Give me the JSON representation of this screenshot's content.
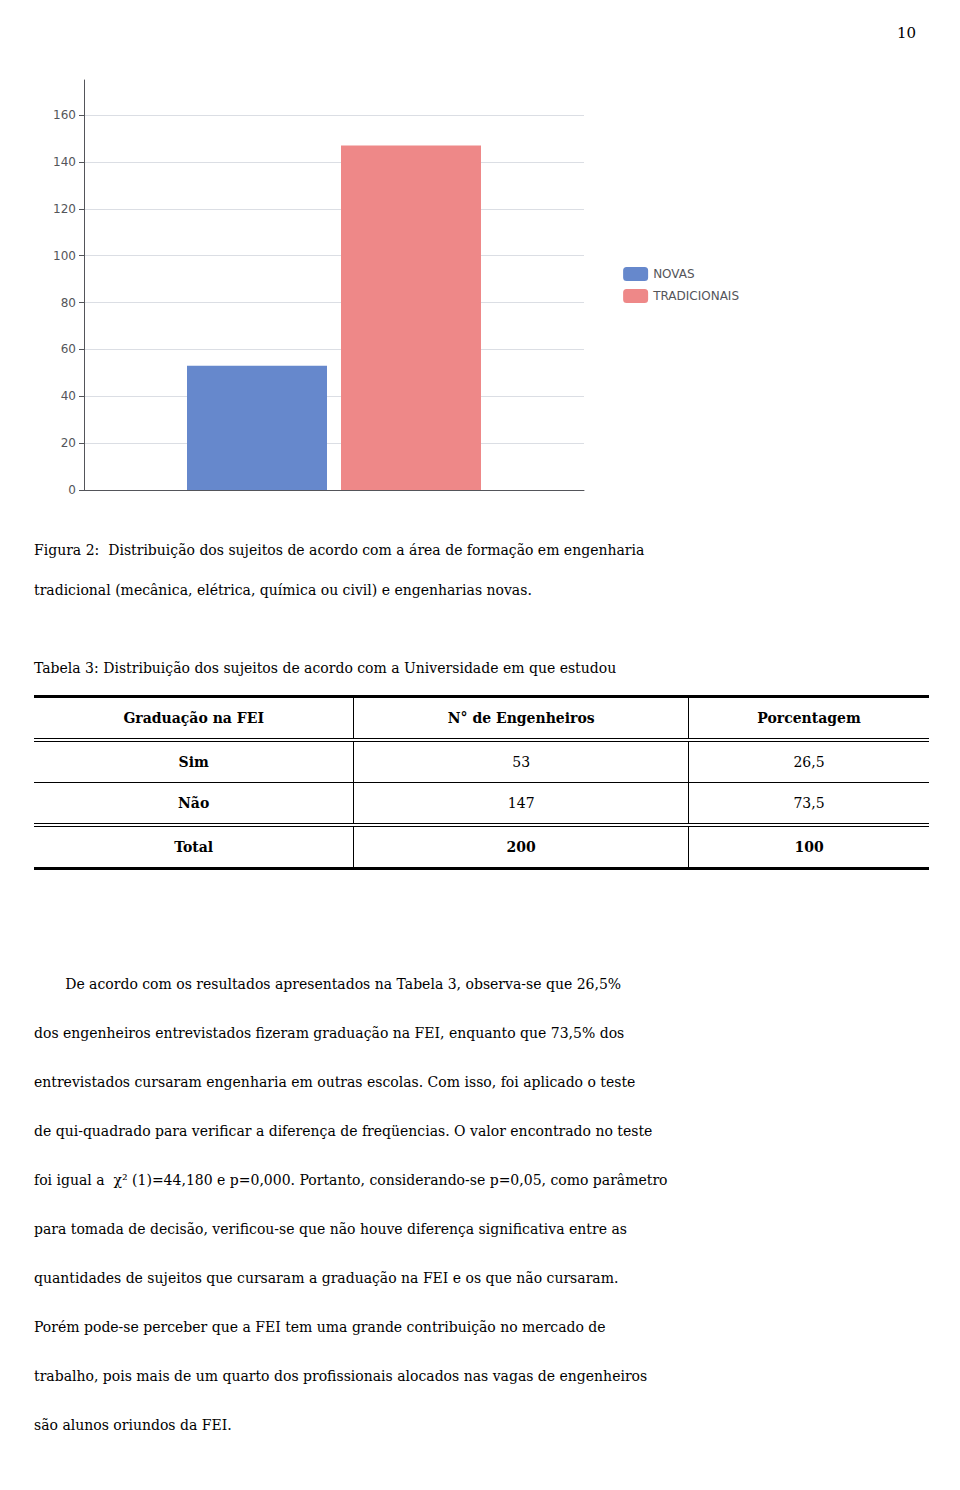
{
  "page_number": "10",
  "caption": [
    "Figura 2:  Distribuição dos sujeitos de acordo com a área de formação em engenharia",
    "tradicional (mecânica, elétrica, química ou civil) e engenharias novas."
  ],
  "table_title": "Tabela 3: Distribuição dos sujeitos de acordo com a Universidade em que estudou",
  "table": {
    "headers": [
      "Graduação na FEI",
      "N° de Engenheiros",
      "Porcentagem"
    ],
    "rows": [
      [
        "Sim",
        "53",
        "26,5"
      ],
      [
        "Não",
        "147",
        "73,5"
      ],
      [
        "Total",
        "200",
        "100"
      ]
    ]
  },
  "paragraph": [
    "       De acordo com os resultados apresentados na Tabela 3, observa-se que 26,5%",
    "dos engenheiros entrevistados fizeram graduação na FEI, enquanto que 73,5% dos",
    "entrevistados cursaram engenharia em outras escolas. Com isso, foi aplicado o teste",
    "de qui-quadrado para verificar a diferença de freqüencias. O valor encontrado no teste",
    "foi igual a  χ² (1)=44,180 e p=0,000. Portanto, considerando-se p=0,05, como parâmetro",
    "para tomada de decisão, verificou-se que não houve diferença significativa entre as",
    "quantidades de sujeitos que cursaram a graduação na FEI e os que não cursaram.",
    "Porém pode-se perceber que a FEI tem uma grande contribuição no mercado de",
    "trabalho, pois mais de um quarto dos profissionais alocados nas vagas de engenheiros",
    "são alunos oriundos da FEI."
  ],
  "chart_data": {
    "type": "bar",
    "categories": [
      null
    ],
    "series": [
      {
        "name": "NOVAS",
        "color": "#6688CC",
        "values": [
          53
        ]
      },
      {
        "name": "TRADICIONAIS",
        "color": "#EE8888",
        "values": [
          147
        ]
      }
    ],
    "ylim": [
      0,
      175
    ],
    "yticks": [
      0,
      20,
      40,
      60,
      80,
      100,
      120,
      140,
      160
    ],
    "grid": true,
    "legend": "right",
    "tick_labels": "y"
  }
}
